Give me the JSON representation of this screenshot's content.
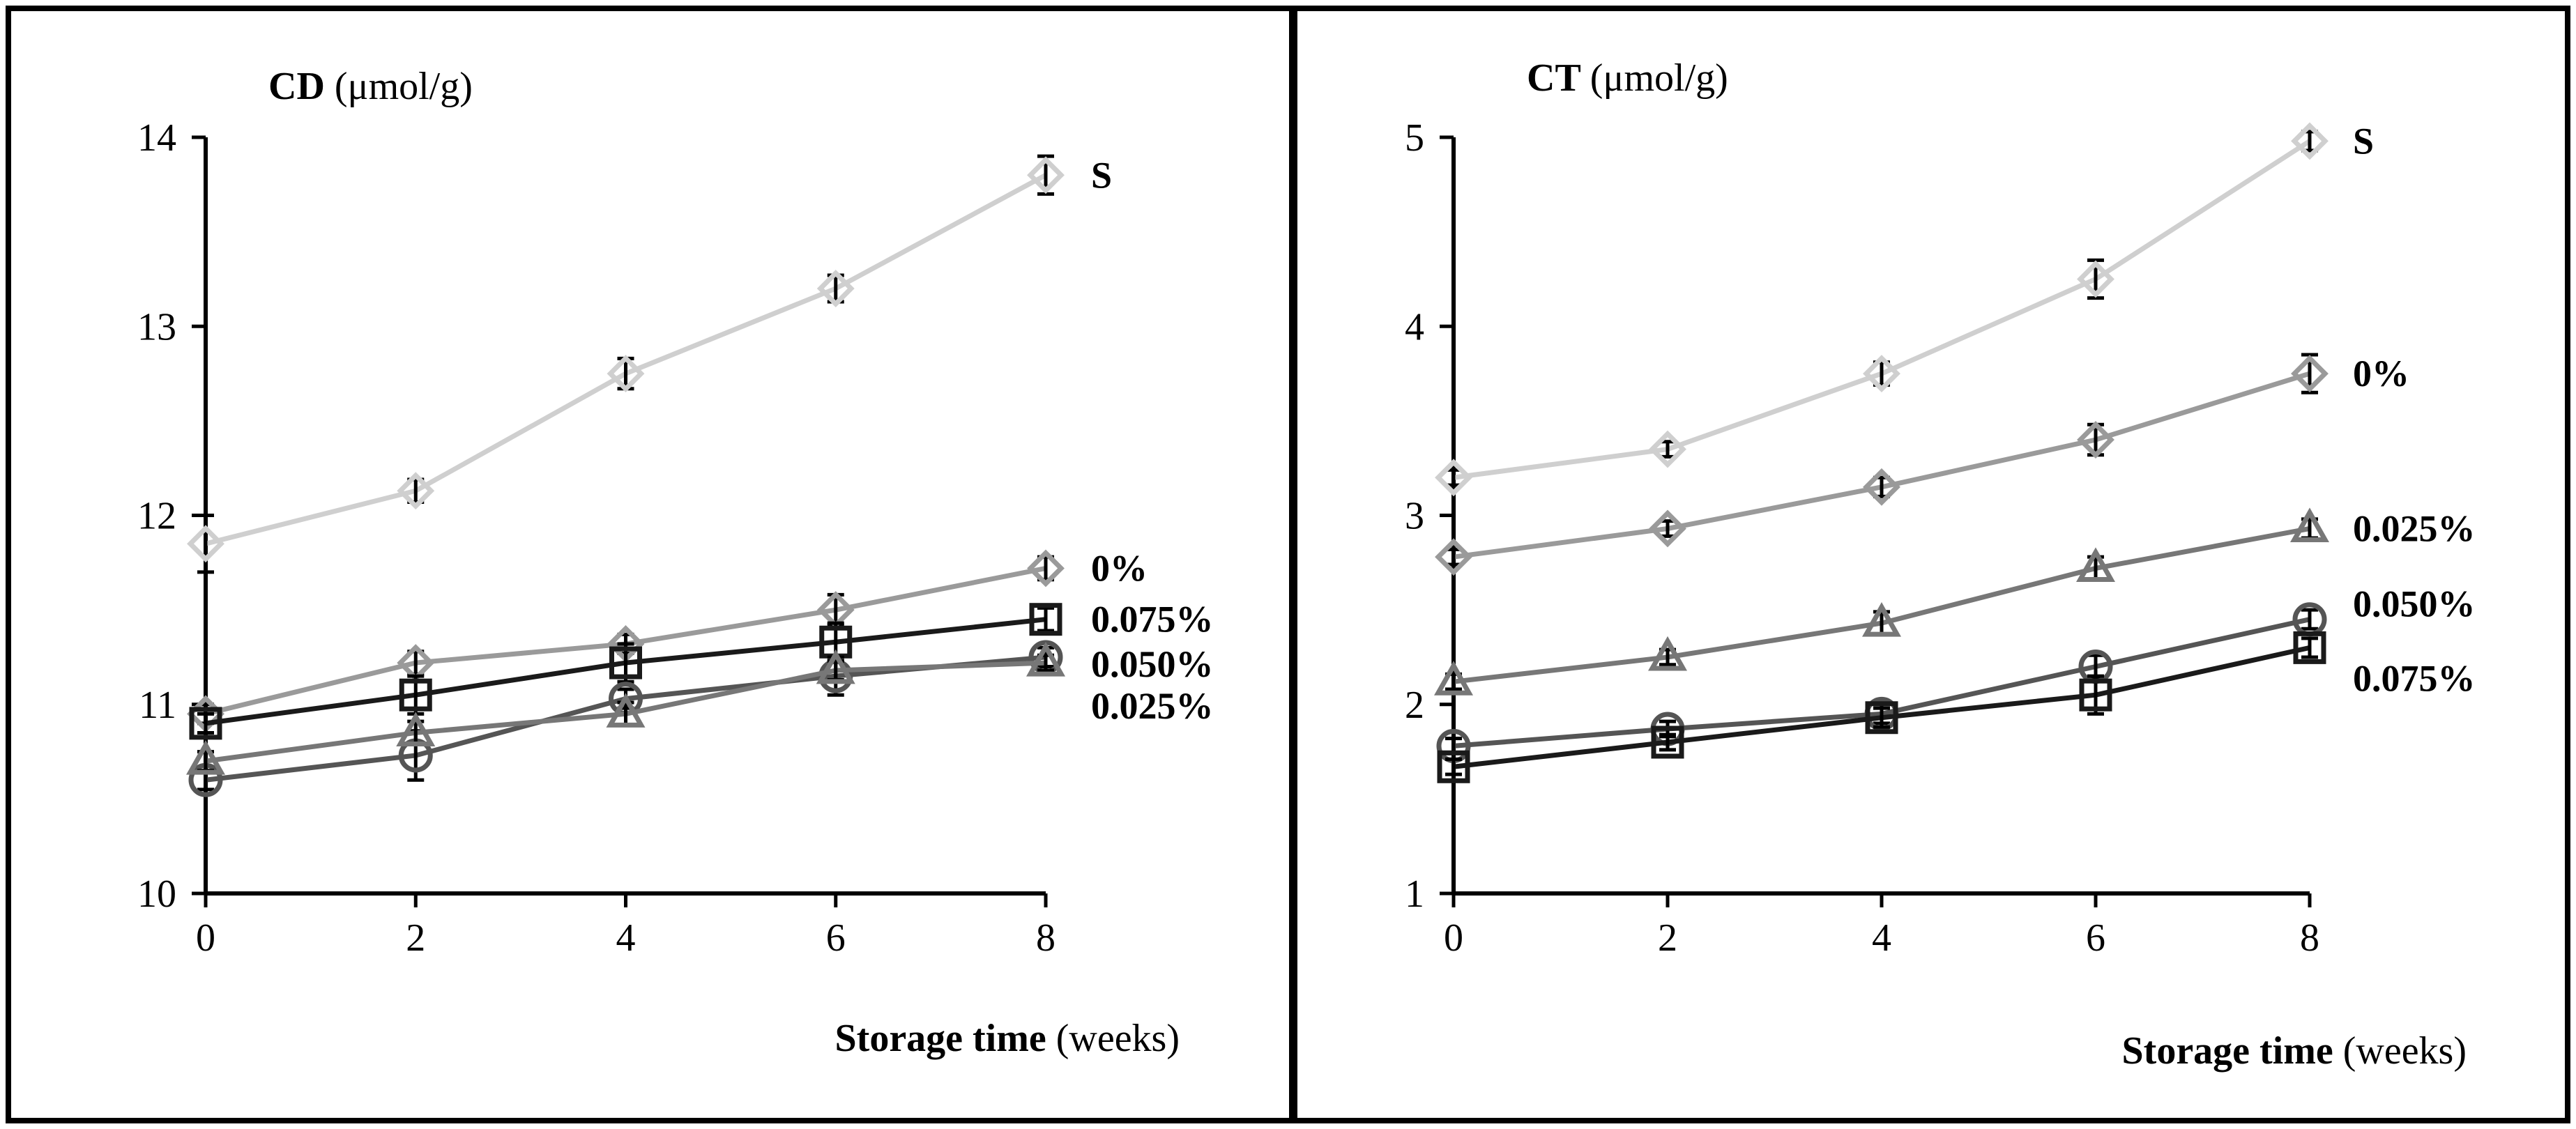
{
  "chart_data": [
    {
      "type": "line",
      "panel": "left",
      "title_bold": "CD ",
      "title_unit": "(μmol/g)",
      "xlabel_bold": "Storage time",
      "xlabel_unit": " (weeks)",
      "ylabel": "",
      "x": [
        0,
        2,
        4,
        6,
        8
      ],
      "xticks": [
        "0",
        "2",
        "4",
        "6",
        "8"
      ],
      "yticks": [
        "10",
        "11",
        "12",
        "13",
        "14"
      ],
      "xlim": [
        0,
        8
      ],
      "ylim": [
        10,
        14
      ],
      "series": [
        {
          "name": "S",
          "label": "S",
          "marker": "diamond",
          "color": "#cfcfcf",
          "values": [
            11.85,
            12.13,
            12.75,
            13.2,
            13.8
          ],
          "errors": [
            0.15,
            0.06,
            0.08,
            0.07,
            0.1
          ]
        },
        {
          "name": "0%",
          "label": "0%",
          "marker": "diamond",
          "color": "#9a9a9a",
          "values": [
            10.95,
            11.22,
            11.32,
            11.5,
            11.72
          ],
          "errors": [
            0.05,
            0.06,
            0.05,
            0.08,
            0.06
          ]
        },
        {
          "name": "0.075%",
          "label": "0.075%",
          "marker": "square",
          "color": "#1a1a1a",
          "values": [
            10.9,
            11.05,
            11.22,
            11.33,
            11.45
          ],
          "errors": [
            0.05,
            0.1,
            0.1,
            0.1,
            0.06
          ]
        },
        {
          "name": "0.050%",
          "label": "0.050%",
          "marker": "circle",
          "color": "#555555",
          "values": [
            10.6,
            10.73,
            11.03,
            11.15,
            11.25
          ],
          "errors": [
            0.05,
            0.13,
            0.05,
            0.1,
            0.05
          ]
        },
        {
          "name": "0.025%",
          "label": "0.025%",
          "marker": "triangle",
          "color": "#777777",
          "values": [
            10.7,
            10.85,
            10.95,
            11.18,
            11.22
          ],
          "errors": [
            0.05,
            0.06,
            0.06,
            0.05,
            0.04
          ]
        }
      ]
    },
    {
      "type": "line",
      "panel": "right",
      "title_bold": "CT ",
      "title_unit": "(μmol/g)",
      "xlabel_bold": "Storage time",
      "xlabel_unit": " (weeks)",
      "ylabel": "",
      "x": [
        0,
        2,
        4,
        6,
        8
      ],
      "xticks": [
        "0",
        "2",
        "4",
        "6",
        "8"
      ],
      "yticks": [
        "1",
        "2",
        "3",
        "4",
        "5"
      ],
      "xlim": [
        0,
        8
      ],
      "ylim": [
        1,
        5
      ],
      "series": [
        {
          "name": "S",
          "label": "S",
          "marker": "diamond",
          "color": "#cfcfcf",
          "values": [
            3.2,
            3.35,
            3.75,
            4.25,
            4.98
          ],
          "errors": [
            0.04,
            0.04,
            0.06,
            0.1,
            0.05
          ]
        },
        {
          "name": "0%",
          "label": "0%",
          "marker": "diamond",
          "color": "#9a9a9a",
          "values": [
            2.78,
            2.93,
            3.15,
            3.4,
            3.75
          ],
          "errors": [
            0.04,
            0.04,
            0.05,
            0.08,
            0.1
          ]
        },
        {
          "name": "0.025%",
          "label": "0.025%",
          "marker": "triangle",
          "color": "#777777",
          "values": [
            2.12,
            2.25,
            2.43,
            2.72,
            2.93
          ],
          "errors": [
            0.04,
            0.04,
            0.06,
            0.06,
            0.05
          ]
        },
        {
          "name": "0.050%",
          "label": "0.050%",
          "marker": "circle",
          "color": "#555555",
          "values": [
            1.78,
            1.87,
            1.95,
            2.2,
            2.45
          ],
          "errors": [
            0.04,
            0.04,
            0.05,
            0.06,
            0.05
          ]
        },
        {
          "name": "0.075%",
          "label": "0.075%",
          "marker": "square",
          "color": "#1a1a1a",
          "values": [
            1.67,
            1.8,
            1.93,
            2.05,
            2.3
          ],
          "errors": [
            0.04,
            0.04,
            0.05,
            0.1,
            0.05
          ]
        }
      ]
    }
  ]
}
